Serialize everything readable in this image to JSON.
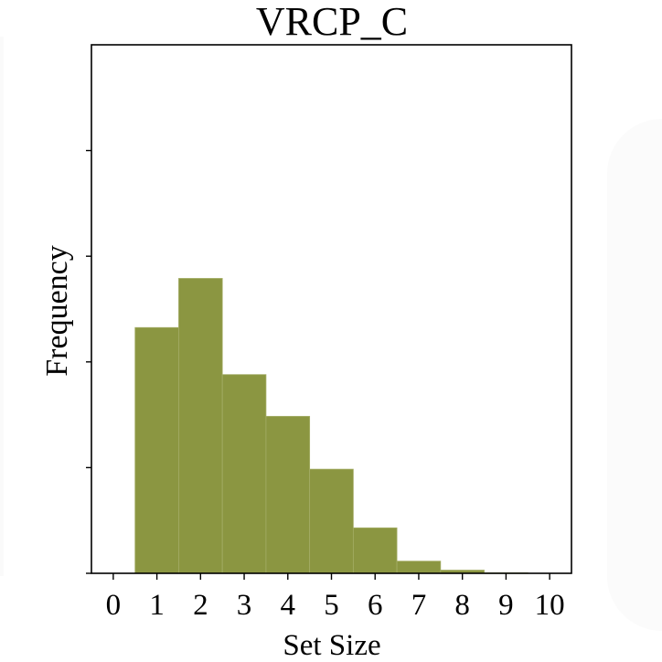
{
  "chart_data": {
    "type": "bar",
    "title": "VRCP_C",
    "xlabel": "Set Size",
    "ylabel": "Frequency",
    "x_ticks": [
      "0",
      "1",
      "2",
      "3",
      "4",
      "5",
      "6",
      "7",
      "8",
      "9",
      "10"
    ],
    "xlim": [
      -0.5,
      10.5
    ],
    "ylim": [
      0,
      100
    ],
    "y_tick_values": [
      0,
      20,
      40,
      60,
      80
    ],
    "y_tick_labels_shown": false,
    "bar_color": "#8b9641",
    "bar_edge_color": "#a4ad66",
    "bars": [
      {
        "x": 1,
        "value": 46.5
      },
      {
        "x": 2,
        "value": 55.8
      },
      {
        "x": 3,
        "value": 37.6
      },
      {
        "x": 4,
        "value": 29.7
      },
      {
        "x": 5,
        "value": 19.7
      },
      {
        "x": 6,
        "value": 8.6
      },
      {
        "x": 7,
        "value": 2.3
      },
      {
        "x": 8,
        "value": 0.6
      },
      {
        "x": 9,
        "value": 0.1
      }
    ],
    "grid": false,
    "legend": "none"
  }
}
